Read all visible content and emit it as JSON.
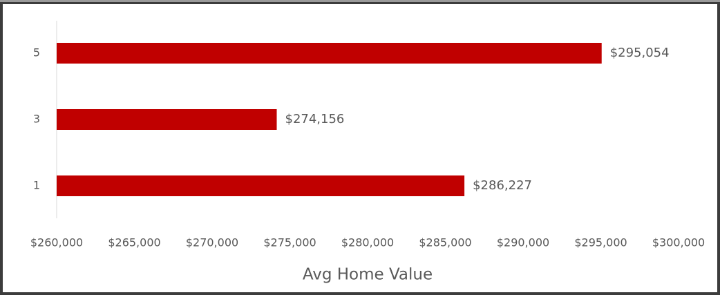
{
  "chart_data": {
    "type": "bar",
    "orientation": "horizontal",
    "x_label": "Avg Home Value",
    "categories": [
      "5",
      "3",
      "1"
    ],
    "values": [
      295054,
      274156,
      286227
    ],
    "value_labels": [
      "$295,054",
      "$274,156",
      "$286,227"
    ],
    "color": "#c00000",
    "xlim": [
      260000,
      300000
    ],
    "xticks": [
      {
        "value": 260000,
        "label": "$260,000"
      },
      {
        "value": 265000,
        "label": "$265,000"
      },
      {
        "value": 270000,
        "label": "$270,000"
      },
      {
        "value": 275000,
        "label": "$275,000"
      },
      {
        "value": 280000,
        "label": "$280,000"
      },
      {
        "value": 285000,
        "label": "$285,000"
      },
      {
        "value": 290000,
        "label": "$290,000"
      },
      {
        "value": 295000,
        "label": "$295,000"
      },
      {
        "value": 300000,
        "label": "$300,000"
      }
    ],
    "grid": false
  }
}
